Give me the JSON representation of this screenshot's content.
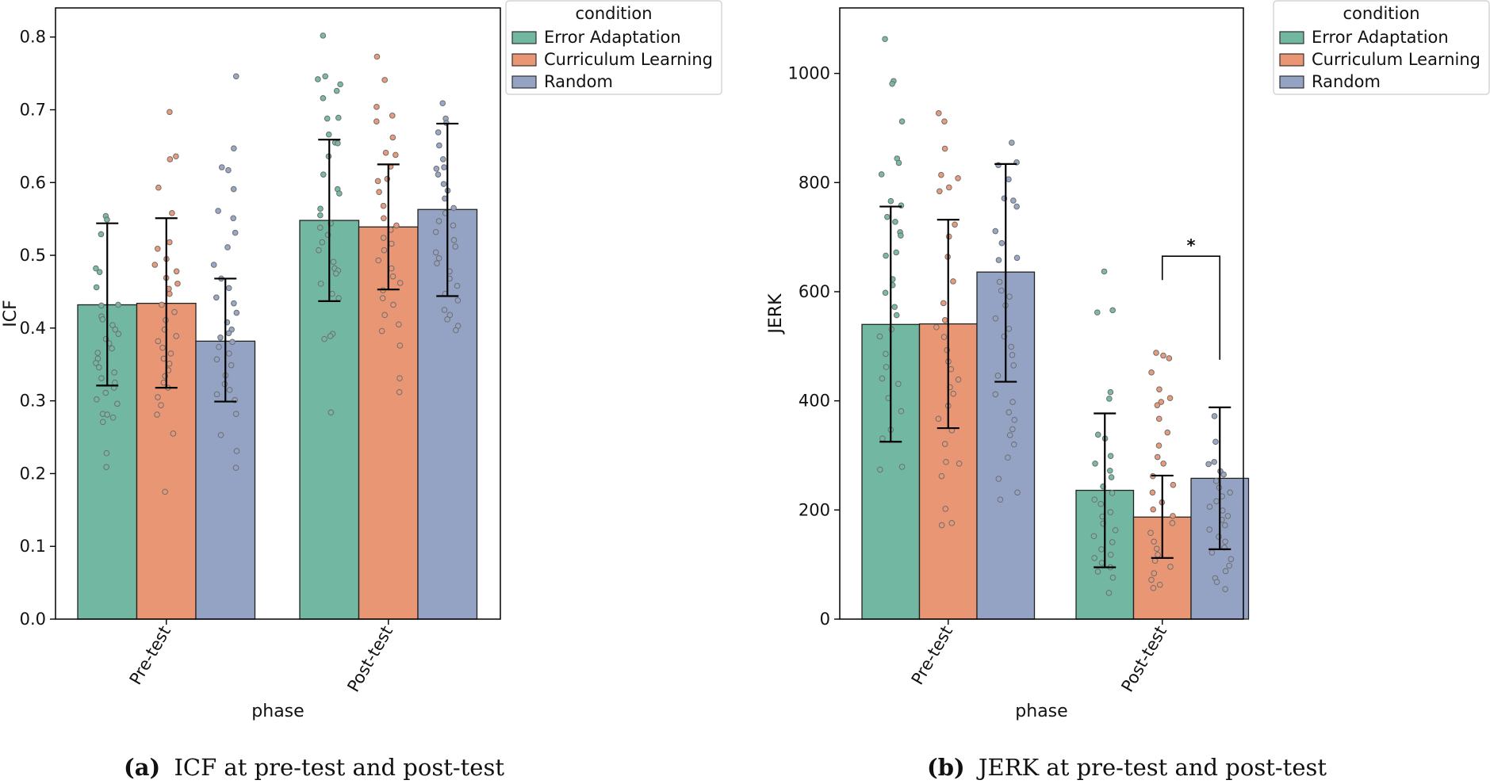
{
  "legend": {
    "title": "condition",
    "entries": [
      "Error Adaptation",
      "Curriculum Learning",
      "Random"
    ]
  },
  "colors": {
    "Error Adaptation": "#72b7a1",
    "Curriculum Learning": "#e99674",
    "Random": "#94a3c4",
    "error_bar": "#000000",
    "axis": "#000000"
  },
  "chart_data": [
    {
      "id": "a",
      "type": "bar",
      "title": "",
      "caption_label": "(a)",
      "caption_text": "ICF at pre-test and post-test",
      "xlabel": "phase",
      "ylabel": "ICF",
      "categories": [
        "Pre-test",
        "Post-test"
      ],
      "ylim": [
        0,
        0.84
      ],
      "yticks": [
        0.0,
        0.1,
        0.2,
        0.3,
        0.4,
        0.5,
        0.6,
        0.7,
        0.8
      ],
      "ytick_labels": [
        "0.0",
        "0.1",
        "0.2",
        "0.3",
        "0.4",
        "0.5",
        "0.6",
        "0.7",
        "0.8"
      ],
      "series": [
        {
          "name": "Error Adaptation",
          "values": [
            0.432,
            0.548
          ],
          "err_low": [
            0.321,
            0.437
          ],
          "err_high": [
            0.544,
            0.659
          ],
          "points": [
            [
              0.554,
              0.549,
              0.529,
              0.482,
              0.477,
              0.456,
              0.432,
              0.431,
              0.416,
              0.412,
              0.404,
              0.398,
              0.392,
              0.385,
              0.379,
              0.372,
              0.366,
              0.358,
              0.352,
              0.346,
              0.339,
              0.331,
              0.325,
              0.318,
              0.311,
              0.302,
              0.296,
              0.282,
              0.281,
              0.277,
              0.271,
              0.228,
              0.209
            ],
            [
              0.802,
              0.746,
              0.742,
              0.735,
              0.726,
              0.716,
              0.689,
              0.688,
              0.666,
              0.655,
              0.654,
              0.636,
              0.611,
              0.591,
              0.585,
              0.564,
              0.555,
              0.544,
              0.538,
              0.528,
              0.518,
              0.507,
              0.491,
              0.482,
              0.479,
              0.475,
              0.461,
              0.447,
              0.441,
              0.392,
              0.389,
              0.385,
              0.284
            ]
          ]
        },
        {
          "name": "Curriculum Learning",
          "values": [
            0.434,
            0.539
          ],
          "err_low": [
            0.318,
            0.453
          ],
          "err_high": [
            0.551,
            0.625
          ],
          "points": [
            [
              0.697,
              0.636,
              0.632,
              0.593,
              0.558,
              0.518,
              0.509,
              0.495,
              0.487,
              0.478,
              0.469,
              0.461,
              0.454,
              0.447,
              0.432,
              0.422,
              0.411,
              0.398,
              0.389,
              0.382,
              0.373,
              0.365,
              0.358,
              0.351,
              0.342,
              0.334,
              0.325,
              0.318,
              0.305,
              0.294,
              0.281,
              0.255,
              0.175
            ],
            [
              0.773,
              0.741,
              0.704,
              0.692,
              0.684,
              0.662,
              0.641,
              0.638,
              0.622,
              0.605,
              0.602,
              0.587,
              0.568,
              0.551,
              0.541,
              0.535,
              0.524,
              0.516,
              0.507,
              0.493,
              0.482,
              0.471,
              0.462,
              0.452,
              0.441,
              0.432,
              0.418,
              0.405,
              0.396,
              0.376,
              0.331,
              0.312
            ]
          ]
        },
        {
          "name": "Random",
          "values": [
            0.382,
            0.563
          ],
          "err_low": [
            0.299,
            0.444
          ],
          "err_high": [
            0.468,
            0.681
          ],
          "points": [
            [
              0.746,
              0.647,
              0.621,
              0.617,
              0.591,
              0.561,
              0.551,
              0.531,
              0.511,
              0.487,
              0.468,
              0.455,
              0.442,
              0.434,
              0.421,
              0.408,
              0.398,
              0.393,
              0.387,
              0.381,
              0.374,
              0.365,
              0.357,
              0.349,
              0.335,
              0.323,
              0.315,
              0.309,
              0.301,
              0.282,
              0.253,
              0.231,
              0.208
            ],
            [
              0.709,
              0.688,
              0.682,
              0.669,
              0.651,
              0.632,
              0.621,
              0.619,
              0.611,
              0.598,
              0.589,
              0.578,
              0.565,
              0.558,
              0.547,
              0.541,
              0.532,
              0.521,
              0.512,
              0.504,
              0.496,
              0.489,
              0.478,
              0.468,
              0.458,
              0.447,
              0.438,
              0.425,
              0.418,
              0.412,
              0.403,
              0.397
            ]
          ]
        }
      ]
    },
    {
      "id": "b",
      "type": "bar",
      "title": "",
      "caption_label": "(b)",
      "caption_text": "JERK at pre-test and post-test",
      "xlabel": "phase",
      "ylabel": "JERK",
      "categories": [
        "Pre-test",
        "Post-test"
      ],
      "ylim": [
        0,
        1120
      ],
      "yticks": [
        0,
        200,
        400,
        600,
        800,
        1000
      ],
      "ytick_labels": [
        "0",
        "200",
        "400",
        "600",
        "800",
        "1000"
      ],
      "significance": {
        "label": "*",
        "from": "Curriculum Learning",
        "to": "Random",
        "phase": "Post-test",
        "height": 665
      },
      "series": [
        {
          "name": "Error Adaptation",
          "values": [
            540,
            236
          ],
          "err_low": [
            325,
            95
          ],
          "err_high": [
            756,
            377
          ],
          "points": [
            [
              1063,
              986,
              981,
              912,
              844,
              836,
              815,
              766,
              758,
              737,
              728,
              709,
              703,
              672,
              666,
              623,
              612,
              598,
              572,
              557,
              531,
              518,
              486,
              462,
              441,
              431,
              405,
              381,
              347,
              331,
              279,
              274
            ],
            [
              637,
              566,
              562,
              416,
              404,
              338,
              331,
              299,
              285,
              272,
              260,
              243,
              231,
              219,
              211,
              196,
              188,
              175,
              163,
              152,
              141,
              128,
              118,
              112,
              103,
              95,
              87,
              76,
              48
            ]
          ]
        },
        {
          "name": "Curriculum Learning",
          "values": [
            541,
            187
          ],
          "err_low": [
            350,
            112
          ],
          "err_high": [
            732,
            263
          ],
          "points": [
            [
              927,
              912,
              862,
              814,
              808,
              791,
              784,
              723,
              701,
              664,
              619,
              579,
              548,
              535,
              517,
              493,
              472,
              458,
              439,
              425,
              413,
              391,
              367,
              346,
              321,
              288,
              285,
              262,
              202,
              176,
              172
            ],
            [
              488,
              483,
              478,
              452,
              421,
              405,
              398,
              392,
              367,
              342,
              318,
              297,
              285,
              262,
              246,
              232,
              214,
              201,
              189,
              176,
              158,
              142,
              129,
              118,
              107,
              96,
              84,
              72,
              63,
              57
            ]
          ]
        },
        {
          "name": "Random",
          "values": [
            636,
            258
          ],
          "err_low": [
            435,
            128
          ],
          "err_high": [
            834,
            388
          ],
          "points": [
            [
              873,
              837,
              832,
              806,
              771,
              767,
              756,
              711,
              689,
              662,
              658,
              618,
              602,
              591,
              575,
              551,
              532,
              518,
              499,
              484,
              465,
              446,
              412,
              398,
              379,
              365,
              348,
              337,
              320,
              296,
              257,
              232,
              219
            ],
            [
              372,
              325,
              288,
              284,
              271,
              265,
              253,
              241,
              232,
              225,
              216,
              206,
              199,
              189,
              182,
              172,
              164,
              151,
              142,
              131,
              122,
              110,
              98,
              88,
              75,
              68,
              55
            ]
          ]
        }
      ]
    }
  ]
}
